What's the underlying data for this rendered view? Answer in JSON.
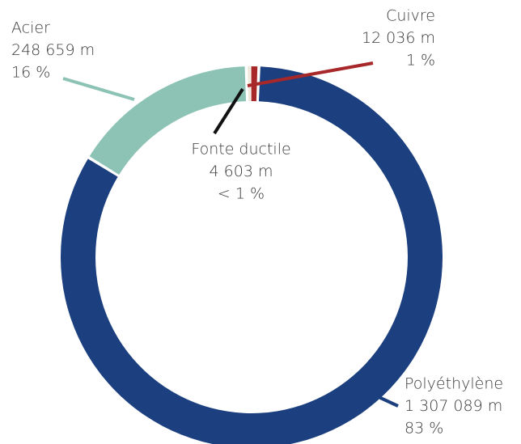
{
  "chart_data": {
    "type": "pie",
    "donut": true,
    "categories": [
      "Polyéthylène",
      "Acier",
      "Fonte ductile",
      "Cuivre"
    ],
    "values": [
      1307089,
      248659,
      4603,
      12036
    ],
    "value_labels": [
      "1 307 089 m",
      "248 659 m",
      "4 603 m",
      "12 036 m"
    ],
    "percent_labels": [
      "83 %",
      "16 %",
      "< 1 %",
      "1 %"
    ],
    "colors": [
      "#1b3f7f",
      "#8cc3b4",
      "#efe9dc",
      "#a8282a"
    ]
  }
}
